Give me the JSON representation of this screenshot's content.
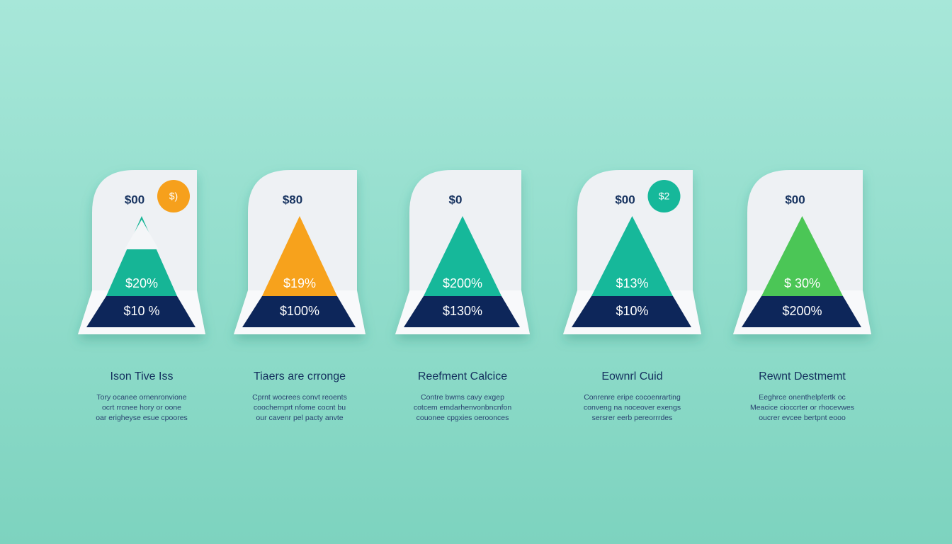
{
  "cards": [
    {
      "price": "$00",
      "badge": "$)",
      "badge_color": "#f6a01a",
      "color": "#13b596",
      "upper": "$20%",
      "lower": "$10 %",
      "title": "Ison Tive Iss",
      "description": [
        "Tory ocanee ornenronvione",
        "ocrt rrcnee hory or oone",
        "oar erigheyse esue cpoores"
      ]
    },
    {
      "price": "$80",
      "color": "#f7a21b",
      "upper": "$19%",
      "lower": "$100%",
      "title": "Tiaers are crronge",
      "description": [
        "Cprnt wocrees convt reoents",
        "coochernprt nfome cocnt bu",
        "our cavenr pel pacty anvte"
      ]
    },
    {
      "price": "$0",
      "color": "#14b89a",
      "upper": "$200%",
      "lower": "$130%",
      "title": "Reefment Calcice",
      "description": [
        "Contre bwms cavy exgep",
        "cotcem emdarhenvonbncnfon",
        "couonee cpgxies oeroonces"
      ]
    },
    {
      "price": "$00",
      "badge": "$2",
      "badge_color": "#14b89a",
      "color": "#14b89a",
      "upper": "$13%",
      "lower": "$10%",
      "title": "Eownrl Cuid",
      "description": [
        "Conrenre eripe cocoenrarting",
        "conveng na noceover exengs",
        "sersrer eerb pereorrrdes"
      ]
    },
    {
      "price": "$00",
      "color": "#4cc656",
      "upper": "$ 30%",
      "lower": "$200%",
      "title": "Rewnt Destmemt",
      "description": [
        "Eeghrce onenthelpfertk oc",
        "Meacice cioccrter or rhocevwes",
        "oucrer evcee bertpnt eooo"
      ]
    }
  ]
}
